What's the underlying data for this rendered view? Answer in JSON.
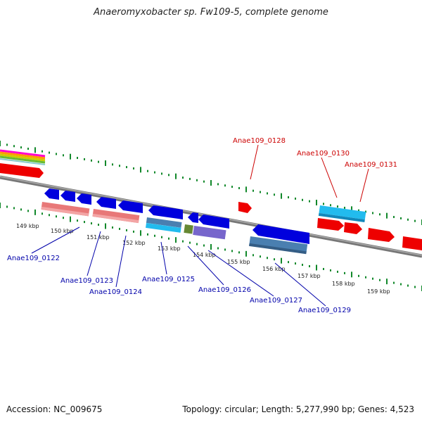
{
  "title": "Anaeromyxobacter sp. Fw109-5, complete genome",
  "footer": {
    "accession": "Accession: NC_009675",
    "summary": "Topology: circular; Length: 5,277,990 bp; Genes: 4,523"
  },
  "colors": {
    "forward_gene": "#ee0000",
    "reverse_gene": "#0000dd",
    "cds_light": "#e87878",
    "cds_cyan": "#22bbee",
    "cds_steel": "#4a7fb0",
    "cds_purple": "#7766cc",
    "cds_olive": "#668833",
    "tick": "#11882a",
    "backbone": "#888888",
    "label_forward": "#cc0000",
    "label_reverse": "#0000aa"
  },
  "kbp_ticks": [
    "149 kbp",
    "150 kbp",
    "151 kbp",
    "152 kbp",
    "153 kbp",
    "154 kbp",
    "155 kbp",
    "156 kbp",
    "157 kbp",
    "158 kbp",
    "159 kbp"
  ],
  "forward_labels": [
    "Anae109_0128",
    "Anae109_0130",
    "Anae109_0131"
  ],
  "reverse_labels": [
    "Anae109_0122",
    "Anae109_0123",
    "Anae109_0124",
    "Anae109_0125",
    "Anae109_0126",
    "Anae109_0127",
    "Anae109_0129"
  ]
}
